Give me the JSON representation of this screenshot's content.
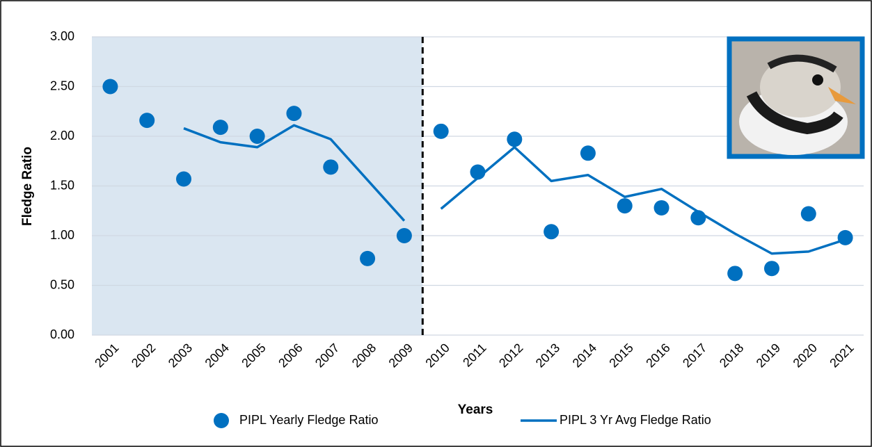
{
  "chart_data": {
    "type": "scatter_line",
    "categories": [
      "2001",
      "2002",
      "2003",
      "2004",
      "2005",
      "2006",
      "2007",
      "2008",
      "2009",
      "2010",
      "2011",
      "2012",
      "2013",
      "2014",
      "2015",
      "2016",
      "2017",
      "2018",
      "2019",
      "2020",
      "2021"
    ],
    "series": [
      {
        "name": "PIPL Yearly Fledge Ratio",
        "color": "#0070c0",
        "kind": "marker",
        "values": [
          2.5,
          2.16,
          1.57,
          2.09,
          2.0,
          2.23,
          1.69,
          0.77,
          1.0,
          2.05,
          1.64,
          1.97,
          1.04,
          1.83,
          1.3,
          1.28,
          1.18,
          0.62,
          0.67,
          1.22,
          0.98
        ]
      },
      {
        "name": "PIPL 3 Yr Avg Fledge Ratio",
        "color": "#0070c0",
        "kind": "line",
        "values": [
          null,
          null,
          2.08,
          1.94,
          1.89,
          2.11,
          1.97,
          1.56,
          1.15,
          1.27,
          1.58,
          1.89,
          1.55,
          1.61,
          1.39,
          1.47,
          1.24,
          1.02,
          0.82,
          0.84,
          0.96
        ]
      }
    ],
    "x_label": "Years",
    "y_label": "Fledge Ratio",
    "ylim": [
      0,
      3
    ],
    "yticks": [
      {
        "value": 0,
        "label": "0.00"
      },
      {
        "value": 0.5,
        "label": "0.50"
      },
      {
        "value": 1,
        "label": "1.00"
      },
      {
        "value": 1.5,
        "label": "1.50"
      },
      {
        "value": 2,
        "label": "2.00"
      },
      {
        "value": 2.5,
        "label": "2.50"
      },
      {
        "value": 3,
        "label": "3.00"
      }
    ],
    "grid": true,
    "legend": "bottom",
    "highlight_range": [
      "2001",
      "2009"
    ],
    "highlight_color": "#dae6f1"
  }
}
